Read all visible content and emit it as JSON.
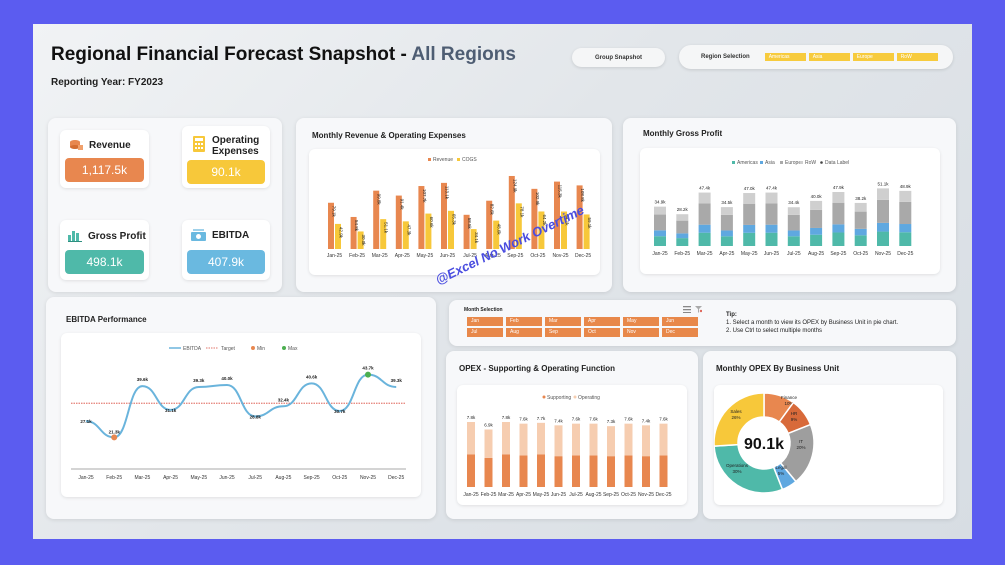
{
  "header": {
    "title_main": "Regional Financial Forecast Snapshot - ",
    "title_accent": "All Regions",
    "subtitle": "Reporting Year: FY2023",
    "group_snapshot": "Group Snapshot",
    "region_selection_label": "Region Selection",
    "regions": [
      "Americas",
      "Asia",
      "Europe",
      "RoW"
    ]
  },
  "kpis": {
    "revenue": {
      "label": "Revenue",
      "value": "1,117.5k",
      "color": "#e8874f"
    },
    "opex": {
      "label_line1": "Operating",
      "label_line2": "Expenses",
      "value": "90.1k",
      "color": "#f7c83a"
    },
    "gross_profit": {
      "label": "Gross Profit",
      "value": "498.1k",
      "color": "#4fb9a9"
    },
    "ebitda": {
      "label": "EBITDA",
      "value": "407.9k",
      "color": "#6ab9e0"
    }
  },
  "months": [
    "Jan-25",
    "Feb-25",
    "Mar-25",
    "Apr-25",
    "May-25",
    "Jun-25",
    "Jul-25",
    "Aug-25",
    "Sep-25",
    "Oct-25",
    "Nov-25",
    "Dec-25"
  ],
  "rev_chart": {
    "title": "Monthly Revenue & Operating Expenses",
    "legend": [
      "Revenue",
      "COGS"
    ],
    "revenue": [
      79.1,
      54.8,
      99.8,
      91.4,
      107.7,
      113.1,
      58.5,
      82.6,
      124.9,
      102.9,
      115.3,
      108.8
    ],
    "cogs": [
      42.9,
      30.0,
      51.1,
      47.3,
      60.6,
      65.3,
      34.1,
      48.6,
      78.1,
      64.2,
      64.1,
      59.1
    ],
    "colors": {
      "revenue": "#e8874f",
      "cogs": "#f7c83a"
    }
  },
  "gp_chart": {
    "title": "Monthly Gross Profit",
    "legend": [
      "Americas",
      "Asia",
      "Europe",
      "RoW",
      "Data Label"
    ],
    "totals": [
      "34.9k",
      "28.2k",
      "47.4k",
      "34.5k",
      "47.0k",
      "47.4k",
      "34.4k",
      "40.0k",
      "47.9k",
      "38.2k",
      "51.1k",
      "48.9k"
    ],
    "americas": [
      8.7,
      7.0,
      11.8,
      8.6,
      11.7,
      11.8,
      8.6,
      10.0,
      12.0,
      9.5,
      12.8,
      12.2
    ],
    "asia": [
      5.2,
      4.2,
      7.1,
      5.2,
      7.0,
      7.1,
      5.2,
      6.0,
      7.2,
      5.7,
      7.7,
      7.3
    ],
    "europe": [
      14.0,
      11.3,
      19.0,
      13.8,
      18.8,
      19.0,
      13.8,
      16.0,
      19.2,
      15.3,
      20.4,
      19.6
    ],
    "row": [
      7.0,
      5.7,
      9.5,
      6.9,
      9.5,
      9.5,
      6.8,
      8.0,
      9.5,
      7.7,
      10.2,
      9.8
    ],
    "colors": {
      "americas": "#4fb9a9",
      "asia": "#5fa8e0",
      "europe": "#a9a9a9",
      "row": "#cfcfcf"
    }
  },
  "ebitda_chart": {
    "title": "EBITDA Performance",
    "legend": [
      "EBITDA",
      "Target",
      "Min",
      "Max"
    ],
    "values": [
      27.1,
      21.3,
      39.6,
      31.1,
      39.3,
      40.0,
      28.8,
      32.4,
      40.6,
      30.7,
      43.7,
      39.3
    ],
    "labels": [
      "27.1k",
      "21.3k",
      "39.6k",
      "31.1k",
      "39.3k",
      "40.0k",
      "28.8k",
      "32.4k",
      "40.6k",
      "30.7k",
      "43.7k",
      "39.3k"
    ],
    "target": 33.5,
    "ylim": [
      10,
      50
    ],
    "colors": {
      "line": "#6ab4dc",
      "target": "#d9493b",
      "min": "#e8874f",
      "max": "#4caf50"
    }
  },
  "month_selection": {
    "title": "Month Selection",
    "buttons": [
      "Jan",
      "Feb",
      "Mar",
      "Apr",
      "May",
      "Jun",
      "Jul",
      "Aug",
      "Sep",
      "Oct",
      "Nov",
      "Dec"
    ],
    "tip_title": "Tip:",
    "tip1": "1. Select a month to view its OPEX by Business Unit in pie chart.",
    "tip2": "2. Use Ctrl to select multiple months"
  },
  "opex_chart": {
    "title": "OPEX - Supporting & Operating Function",
    "legend": [
      "Supporting",
      "Operating"
    ],
    "labels": [
      "7.8k",
      "6.9k",
      "7.8k",
      "7.6k",
      "7.7k",
      "7.4k",
      "7.6k",
      "7.6k",
      "7.3k",
      "7.6k",
      "7.4k",
      "7.6k"
    ],
    "supporting": [
      3.9,
      3.5,
      3.9,
      3.8,
      3.9,
      3.7,
      3.8,
      3.8,
      3.7,
      3.8,
      3.7,
      3.8
    ],
    "operating": [
      3.9,
      3.4,
      3.9,
      3.8,
      3.8,
      3.7,
      3.8,
      3.8,
      3.6,
      3.8,
      3.7,
      3.8
    ],
    "colors": {
      "supporting": "#e8874f",
      "operating": "#f6cdb0"
    }
  },
  "donut_chart": {
    "title": "Monthly OPEX By Business Unit",
    "center": "90.1k",
    "slices": [
      {
        "name": "Finance",
        "pct": "10%",
        "value": 10,
        "color": "#e8874f"
      },
      {
        "name": "HR",
        "pct": "9%",
        "value": 9,
        "color": "#d86a3a"
      },
      {
        "name": "IT",
        "pct": "20%",
        "value": 20,
        "color": "#9e9e9e"
      },
      {
        "name": "Legal",
        "pct": "5%",
        "value": 5,
        "color": "#5fa8e0"
      },
      {
        "name": "Operations",
        "pct": "30%",
        "value": 30,
        "color": "#4fb9a9"
      },
      {
        "name": "Sales",
        "pct": "26%",
        "value": 26,
        "color": "#f7c83a"
      }
    ]
  },
  "watermark": "@Excel No Work Overtime",
  "chart_data": [
    {
      "type": "bar",
      "title": "Monthly Revenue & Operating Expenses",
      "categories": [
        "Jan-25",
        "Feb-25",
        "Mar-25",
        "Apr-25",
        "May-25",
        "Jun-25",
        "Jul-25",
        "Aug-25",
        "Sep-25",
        "Oct-25",
        "Nov-25",
        "Dec-25"
      ],
      "series": [
        {
          "name": "Revenue",
          "values": [
            79.1,
            54.8,
            99.8,
            91.4,
            107.7,
            113.1,
            58.5,
            82.6,
            124.9,
            102.9,
            115.3,
            108.8
          ]
        },
        {
          "name": "COGS",
          "values": [
            42.9,
            30.0,
            51.1,
            47.3,
            60.6,
            65.3,
            34.1,
            48.6,
            78.1,
            64.2,
            64.1,
            59.1
          ]
        }
      ]
    },
    {
      "type": "bar",
      "title": "Monthly Gross Profit",
      "categories": [
        "Jan-25",
        "Feb-25",
        "Mar-25",
        "Apr-25",
        "May-25",
        "Jun-25",
        "Jul-25",
        "Aug-25",
        "Sep-25",
        "Oct-25",
        "Nov-25",
        "Dec-25"
      ],
      "values": [
        34.9,
        28.2,
        47.4,
        34.5,
        47.0,
        47.4,
        34.4,
        40.0,
        47.9,
        38.2,
        51.1,
        48.9
      ]
    },
    {
      "type": "line",
      "title": "EBITDA Performance",
      "categories": [
        "Jan-25",
        "Feb-25",
        "Mar-25",
        "Apr-25",
        "May-25",
        "Jun-25",
        "Jul-25",
        "Aug-25",
        "Sep-25",
        "Oct-25",
        "Nov-25",
        "Dec-25"
      ],
      "values": [
        27.1,
        21.3,
        39.6,
        31.1,
        39.3,
        40.0,
        28.8,
        32.4,
        40.6,
        30.7,
        43.7,
        39.3
      ]
    },
    {
      "type": "bar",
      "title": "OPEX - Supporting & Operating Function",
      "categories": [
        "Jan-25",
        "Feb-25",
        "Mar-25",
        "Apr-25",
        "May-25",
        "Jun-25",
        "Jul-25",
        "Aug-25",
        "Sep-25",
        "Oct-25",
        "Nov-25",
        "Dec-25"
      ],
      "values": [
        7.8,
        6.9,
        7.8,
        7.6,
        7.7,
        7.4,
        7.6,
        7.6,
        7.3,
        7.6,
        7.4,
        7.6
      ]
    },
    {
      "type": "pie",
      "title": "Monthly OPEX By Business Unit",
      "categories": [
        "Finance",
        "HR",
        "IT",
        "Legal",
        "Operations",
        "Sales"
      ],
      "values": [
        10,
        9,
        20,
        5,
        30,
        26
      ]
    }
  ]
}
